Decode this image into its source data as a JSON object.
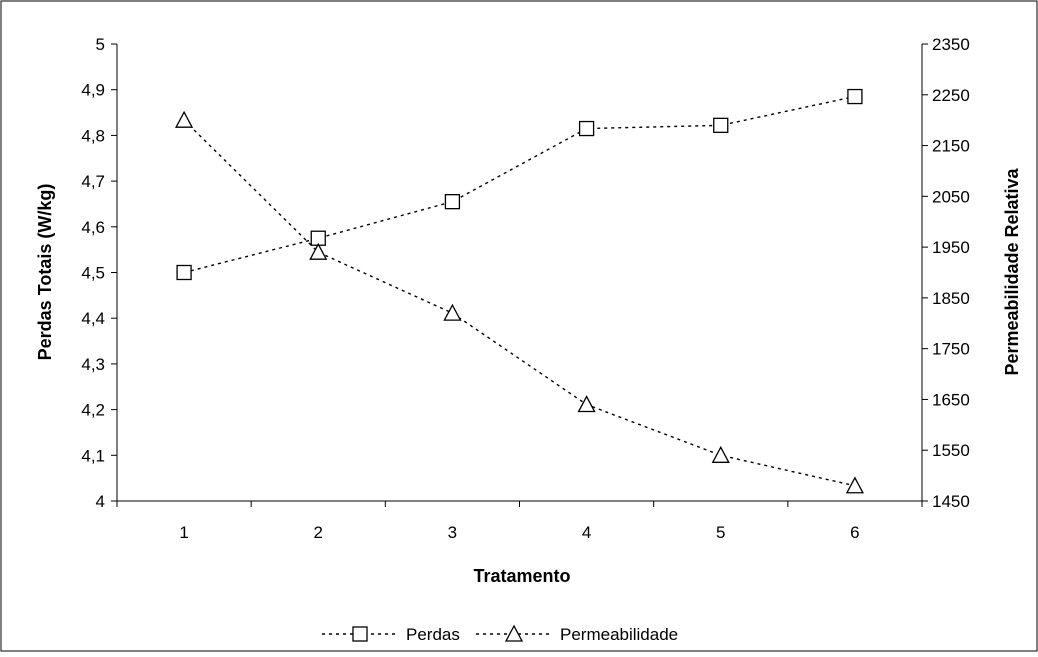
{
  "chart_data": {
    "type": "line",
    "x_label": "Tratamento",
    "y_label_left": "Perdas Totais (W/kg)",
    "y_label_right": "Permeabilidade Relativa",
    "categories": [
      "1",
      "2",
      "3",
      "4",
      "5",
      "6"
    ],
    "y_left_range": [
      4,
      5
    ],
    "y_left_ticks": [
      "4",
      "4,1",
      "4,2",
      "4,3",
      "4,4",
      "4,5",
      "4,6",
      "4,7",
      "4,8",
      "4,9",
      "5"
    ],
    "y_right_range": [
      1450,
      2350
    ],
    "y_right_ticks": [
      "1450",
      "1550",
      "1650",
      "1750",
      "1850",
      "1950",
      "2050",
      "2150",
      "2250",
      "2350"
    ],
    "grid": false,
    "legend_position": "bottom",
    "series": [
      {
        "name": "Perdas",
        "axis": "left",
        "marker": "square",
        "values": [
          4.5,
          4.575,
          4.655,
          4.815,
          4.822,
          4.885
        ]
      },
      {
        "name": "Permeabilidade",
        "axis": "right",
        "marker": "triangle",
        "values": [
          2200,
          1940,
          1820,
          1640,
          1540,
          1480
        ]
      }
    ]
  }
}
